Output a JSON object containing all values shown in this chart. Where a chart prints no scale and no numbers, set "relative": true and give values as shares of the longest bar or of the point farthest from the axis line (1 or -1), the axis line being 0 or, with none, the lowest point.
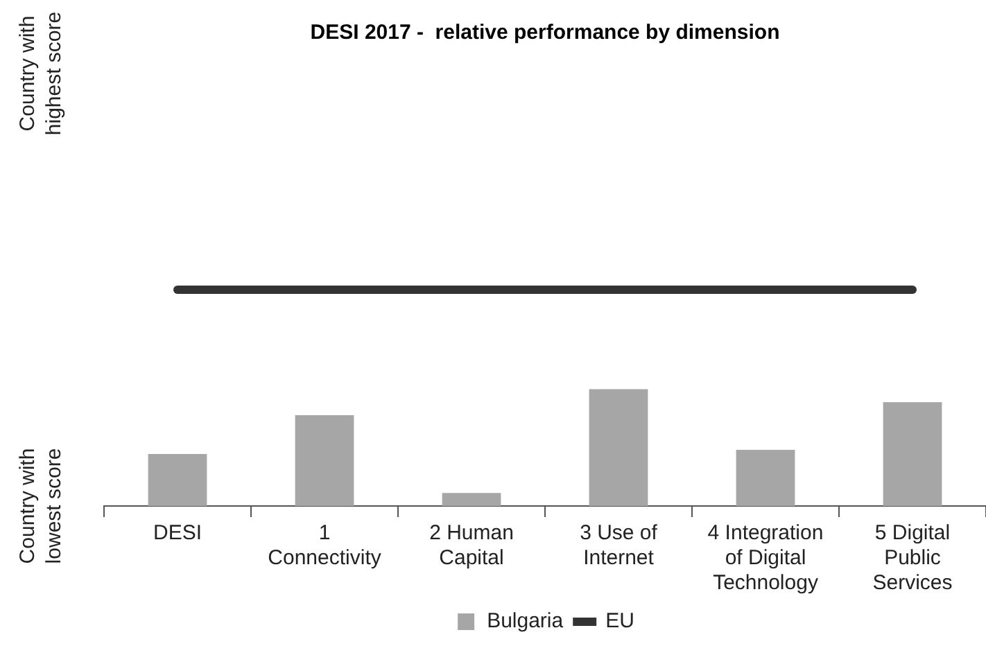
{
  "chart_data": {
    "type": "bar",
    "title": "DESI 2017 -  relative performance by dimension",
    "categories": [
      "DESI",
      "1 Connectivity",
      "2 Human Capital",
      "3 Use of Internet",
      "4 Integration of Digital Technology",
      "5 Digital Public Services"
    ],
    "series": [
      {
        "name": "Bulgaria",
        "color": "#a6a6a6",
        "values": [
          0.24,
          0.42,
          0.06,
          0.54,
          0.26,
          0.48
        ]
      },
      {
        "name": "EU",
        "type": "line",
        "color": "#333333",
        "values": [
          1,
          1,
          1,
          1,
          1,
          1
        ]
      }
    ],
    "relative": true,
    "annotations": [
      "Country with highest score",
      "Country with lowest score"
    ],
    "grid": false,
    "legend": "bottom",
    "marker": "none"
  }
}
